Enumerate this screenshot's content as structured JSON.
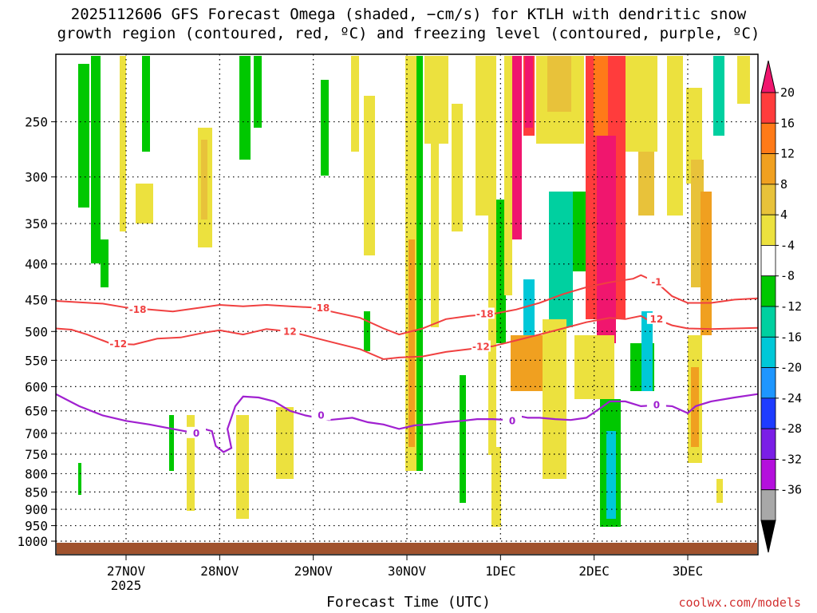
{
  "chart_data": {
    "type": "heatmap",
    "title_line1": "2025112606 GFS Forecast Omega (shaded, −cm/s) for KTLH with dendritic snow",
    "title_line2": "growth region (contoured, red, ºC) and freezing level (contoured, purple, ºC)",
    "xlabel": "Forecast Time (UTC)",
    "credit": "coolwx.com/models",
    "x_ticks": [
      {
        "hour": 18,
        "label": "27NOV"
      },
      {
        "hour": 42,
        "label": "28NOV"
      },
      {
        "hour": 66,
        "label": "29NOV"
      },
      {
        "hour": 90,
        "label": "30NOV"
      },
      {
        "hour": 114,
        "label": "1DEC"
      },
      {
        "hour": 138,
        "label": "2DEC"
      },
      {
        "hour": 162,
        "label": "3DEC"
      }
    ],
    "x_year_label": "2025",
    "x_range_hours": [
      0,
      180
    ],
    "y_ticks": [
      250,
      300,
      350,
      400,
      450,
      500,
      550,
      600,
      650,
      700,
      750,
      800,
      850,
      900,
      950,
      1000
    ],
    "y_range_hpa": [
      200,
      1025
    ],
    "colorbar": {
      "labels": [
        "20",
        "16",
        "12",
        "8",
        "4",
        "-4",
        "-8",
        "-12",
        "-16",
        "-20",
        "-24",
        "-28",
        "-32",
        "-36"
      ],
      "colors": [
        "#ff3c3c",
        "#ff7a18",
        "#f0a020",
        "#e8c23a",
        "#ece13e",
        "#ffffff",
        "#00c800",
        "#00d0a0",
        "#00c8d8",
        "#1e96ff",
        "#1e3cff",
        "#7a1ee6",
        "#b40fdc",
        "#a8a8a8"
      ],
      "top_color": "#f0166e",
      "bottom_color": "#000000"
    },
    "contours": {
      "dgz_upper_label": "-18",
      "dgz_upper_label_short": "-1",
      "dgz_lower_label": "-12",
      "dgz_lower_label_short": "12",
      "freezing_label": "0",
      "upper_m18": [
        [
          0,
          452
        ],
        [
          6,
          454
        ],
        [
          12,
          456
        ],
        [
          18,
          462
        ],
        [
          24,
          465
        ],
        [
          30,
          468
        ],
        [
          36,
          463
        ],
        [
          42,
          458
        ],
        [
          48,
          460
        ],
        [
          54,
          458
        ],
        [
          60,
          460
        ],
        [
          66,
          462
        ],
        [
          72,
          470
        ],
        [
          78,
          478
        ],
        [
          84,
          495
        ],
        [
          88,
          505
        ],
        [
          94,
          495
        ],
        [
          100,
          480
        ],
        [
          106,
          475
        ],
        [
          112,
          472
        ],
        [
          118,
          465
        ],
        [
          124,
          455
        ],
        [
          130,
          442
        ],
        [
          136,
          432
        ],
        [
          142,
          425
        ],
        [
          148,
          420
        ],
        [
          150,
          415
        ],
        [
          154,
          425
        ],
        [
          158,
          445
        ],
        [
          162,
          455
        ],
        [
          168,
          455
        ],
        [
          174,
          450
        ],
        [
          180,
          448
        ]
      ],
      "lower_m12": [
        [
          0,
          495
        ],
        [
          4,
          497
        ],
        [
          8,
          505
        ],
        [
          14,
          520
        ],
        [
          20,
          522
        ],
        [
          26,
          512
        ],
        [
          32,
          510
        ],
        [
          38,
          502
        ],
        [
          42,
          498
        ],
        [
          48,
          505
        ],
        [
          54,
          496
        ],
        [
          60,
          500
        ],
        [
          66,
          510
        ],
        [
          72,
          520
        ],
        [
          78,
          530
        ],
        [
          84,
          548
        ],
        [
          88,
          545
        ],
        [
          94,
          543
        ],
        [
          100,
          535
        ],
        [
          106,
          530
        ],
        [
          112,
          525
        ],
        [
          118,
          515
        ],
        [
          124,
          505
        ],
        [
          130,
          495
        ],
        [
          136,
          485
        ],
        [
          142,
          478
        ],
        [
          146,
          480
        ],
        [
          150,
          475
        ],
        [
          152,
          482
        ],
        [
          154,
          480
        ],
        [
          158,
          490
        ],
        [
          162,
          495
        ],
        [
          168,
          496
        ],
        [
          174,
          495
        ],
        [
          180,
          494
        ]
      ],
      "freezing_0": [
        [
          0,
          615
        ],
        [
          6,
          640
        ],
        [
          12,
          660
        ],
        [
          18,
          672
        ],
        [
          24,
          680
        ],
        [
          30,
          690
        ],
        [
          36,
          700
        ],
        [
          38,
          690
        ],
        [
          40,
          695
        ],
        [
          41,
          730
        ],
        [
          43,
          745
        ],
        [
          45,
          735
        ],
        [
          44,
          690
        ],
        [
          46,
          640
        ],
        [
          48,
          620
        ],
        [
          52,
          622
        ],
        [
          56,
          630
        ],
        [
          60,
          650
        ],
        [
          64,
          660
        ],
        [
          70,
          670
        ],
        [
          76,
          665
        ],
        [
          80,
          675
        ],
        [
          84,
          680
        ],
        [
          88,
          690
        ],
        [
          92,
          682
        ],
        [
          96,
          680
        ],
        [
          100,
          675
        ],
        [
          104,
          672
        ],
        [
          108,
          668
        ],
        [
          112,
          668
        ],
        [
          116,
          670
        ],
        [
          118,
          660
        ],
        [
          121,
          665
        ],
        [
          124,
          665
        ],
        [
          128,
          668
        ],
        [
          132,
          670
        ],
        [
          136,
          665
        ],
        [
          140,
          642
        ],
        [
          142,
          630
        ],
        [
          146,
          630
        ],
        [
          150,
          640
        ],
        [
          154,
          638
        ],
        [
          158,
          640
        ],
        [
          162,
          655
        ],
        [
          164,
          640
        ],
        [
          168,
          630
        ],
        [
          174,
          622
        ],
        [
          180,
          615
        ]
      ]
    }
  }
}
